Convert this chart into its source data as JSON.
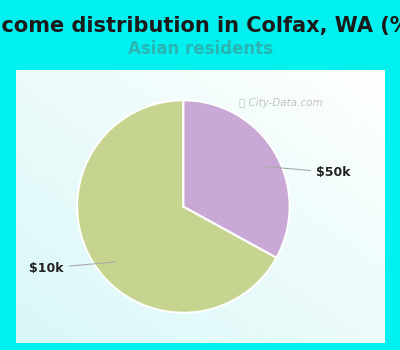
{
  "title": "Income distribution in Colfax, WA (%)",
  "subtitle": "Asian residents",
  "title_fontsize": 15,
  "subtitle_fontsize": 12,
  "title_color": "#1a1a1a",
  "subtitle_color": "#2ab5b5",
  "background_color": "#00efef",
  "slices": [
    {
      "label": "$10k",
      "value": 67,
      "color": "#c5d48f"
    },
    {
      "label": "$50k",
      "value": 33,
      "color": "#c9a8d5"
    }
  ],
  "label_fontsize": 9,
  "watermark": "City-Data.com",
  "startangle": 90
}
